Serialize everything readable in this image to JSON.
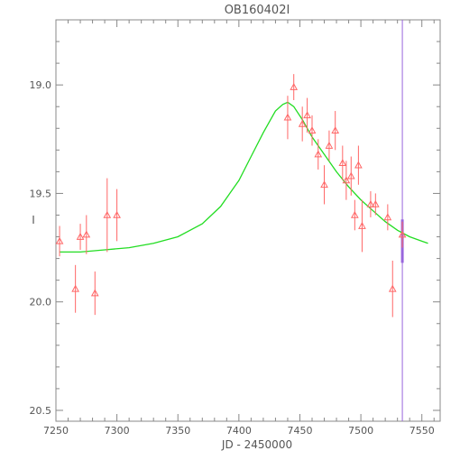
{
  "chart_data": {
    "type": "scatter",
    "title": "OB160402I",
    "xlabel": "JD - 2450000",
    "ylabel": "I",
    "xlim": [
      7250,
      7565
    ],
    "ylim": [
      20.55,
      18.7
    ],
    "y_inverted": true,
    "x_ticks": [
      7250,
      7300,
      7350,
      7400,
      7450,
      7500,
      7550
    ],
    "y_ticks": [
      19.0,
      19.5,
      20.0,
      20.5
    ],
    "y_tick_labels": [
      "19.0",
      "19.5",
      "20.0",
      "20.5"
    ],
    "grid": false,
    "colors": {
      "frame": "#888888",
      "points": "#ff6666",
      "model": "#22dd22",
      "vertical_marker": "#9966dd",
      "text": "#555555"
    },
    "vertical_marker": {
      "x": 7534,
      "ylim": [
        18.7,
        20.55
      ],
      "highlight_range": [
        19.62,
        19.82
      ]
    },
    "series": [
      {
        "marker": "open-triangle",
        "points": [
          {
            "x": 7253,
            "y": 19.72,
            "err": 0.07
          },
          {
            "x": 7266,
            "y": 19.94,
            "err": 0.11
          },
          {
            "x": 7270,
            "y": 19.7,
            "err": 0.06
          },
          {
            "x": 7275,
            "y": 19.69,
            "err": 0.09
          },
          {
            "x": 7282,
            "y": 19.96,
            "err": 0.1
          },
          {
            "x": 7292,
            "y": 19.6,
            "err": 0.17
          },
          {
            "x": 7300,
            "y": 19.6,
            "err": 0.12
          },
          {
            "x": 7440,
            "y": 19.15,
            "err": 0.1
          },
          {
            "x": 7445,
            "y": 19.01,
            "err": 0.06
          },
          {
            "x": 7452,
            "y": 19.18,
            "err": 0.08
          },
          {
            "x": 7456,
            "y": 19.14,
            "err": 0.08
          },
          {
            "x": 7460,
            "y": 19.21,
            "err": 0.07
          },
          {
            "x": 7465,
            "y": 19.32,
            "err": 0.07
          },
          {
            "x": 7470,
            "y": 19.46,
            "err": 0.09
          },
          {
            "x": 7474,
            "y": 19.28,
            "err": 0.07
          },
          {
            "x": 7479,
            "y": 19.21,
            "err": 0.09
          },
          {
            "x": 7485,
            "y": 19.36,
            "err": 0.08
          },
          {
            "x": 7488,
            "y": 19.44,
            "err": 0.09
          },
          {
            "x": 7492,
            "y": 19.42,
            "err": 0.09
          },
          {
            "x": 7495,
            "y": 19.6,
            "err": 0.07
          },
          {
            "x": 7498,
            "y": 19.37,
            "err": 0.09
          },
          {
            "x": 7501,
            "y": 19.65,
            "err": 0.12
          },
          {
            "x": 7508,
            "y": 19.55,
            "err": 0.06
          },
          {
            "x": 7512,
            "y": 19.55,
            "err": 0.05
          },
          {
            "x": 7522,
            "y": 19.61,
            "err": 0.06
          },
          {
            "x": 7526,
            "y": 19.94,
            "err": 0.13
          },
          {
            "x": 7534,
            "y": 19.69,
            "err": 0.06
          }
        ]
      }
    ],
    "model": {
      "type": "line",
      "x": [
        7253,
        7270,
        7290,
        7310,
        7330,
        7350,
        7370,
        7385,
        7400,
        7410,
        7420,
        7430,
        7436,
        7440,
        7445,
        7452,
        7460,
        7470,
        7480,
        7490,
        7500,
        7510,
        7520,
        7530,
        7540,
        7550,
        7555
      ],
      "y": [
        19.77,
        19.77,
        19.76,
        19.75,
        19.73,
        19.7,
        19.64,
        19.56,
        19.44,
        19.33,
        19.22,
        19.12,
        19.09,
        19.08,
        19.1,
        19.16,
        19.24,
        19.32,
        19.4,
        19.47,
        19.53,
        19.58,
        19.63,
        19.67,
        19.7,
        19.72,
        19.73
      ]
    }
  }
}
